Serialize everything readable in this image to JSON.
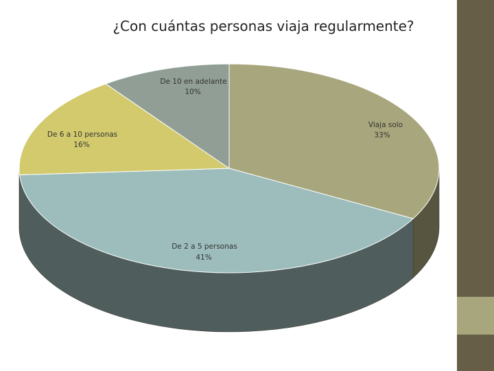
{
  "title": "¿Con cuántas personas viaja regularmente?",
  "colors": {
    "sidebar_dark": "#675e48",
    "sidebar_light": "#a8a67c"
  },
  "chart_data": {
    "type": "pie",
    "title": "¿Con cuántas personas viaja regularmente?",
    "style": "3d",
    "slices": [
      {
        "label": "Viaja solo",
        "value_label": "33%",
        "value": 33,
        "color": "#a8a67c",
        "side_color": "#57553f"
      },
      {
        "label": "De 2 a 5 personas",
        "value_label": "41%",
        "value": 41,
        "color": "#9dbcbc",
        "side_color": "#4f5e5c"
      },
      {
        "label": "De 6 a 10 personas",
        "value_label": "16%",
        "value": 16,
        "color": "#d3ca6d",
        "side_color": "#6a6637"
      },
      {
        "label": "De 10 en adelante",
        "value_label": "10%",
        "value": 10,
        "color": "#909e96",
        "side_color": "#4d5550"
      }
    ]
  }
}
